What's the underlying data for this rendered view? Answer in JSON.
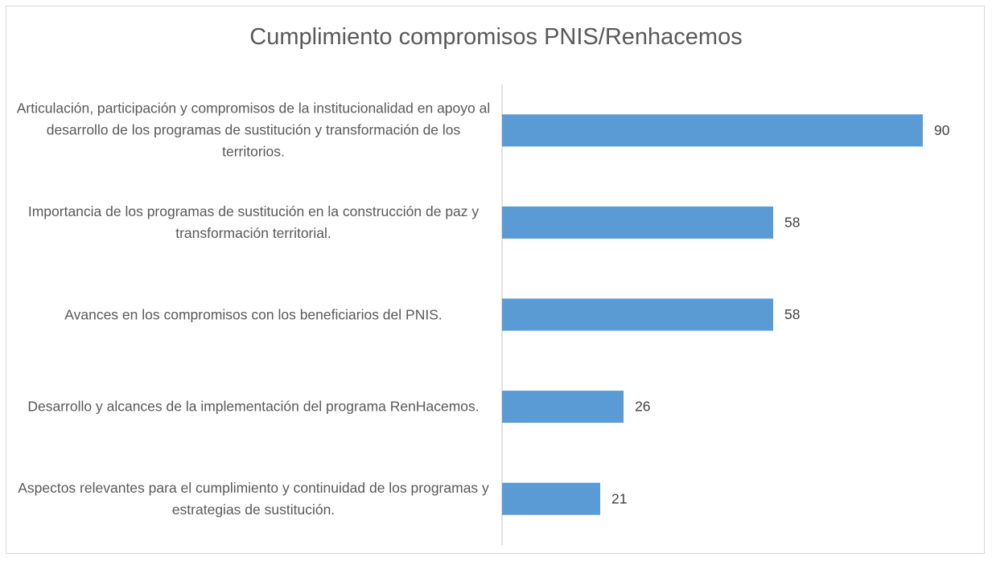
{
  "chart_data": {
    "type": "barh",
    "title": "Cumplimiento compromisos PNIS/Renhacemos",
    "categories": [
      "Articulación, participación y compromisos de la institucionalidad en apoyo al desarrollo de los programas de sustitución y transformación de los territorios.",
      "Importancia de los programas de sustitución en la construcción de paz y transformación territorial.",
      "Avances en los compromisos con los beneficiarios del PNIS.",
      "Desarrollo y alcances de la implementación del programa RenHacemos.",
      "Aspectos relevantes para el cumplimiento y continuidad de los programas y estrategias de sustitución."
    ],
    "values": [
      90,
      58,
      58,
      26,
      21
    ],
    "color": "#5b9bd5"
  }
}
